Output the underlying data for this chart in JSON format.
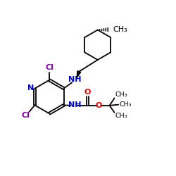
{
  "bg_color": "#ffffff",
  "atom_colors": {
    "C": "#000000",
    "N_blue": "#0000cc",
    "Cl_purple": "#8800aa",
    "O": "#dd0000",
    "H": "#000000"
  },
  "bond_color": "#000000",
  "figsize": [
    2.5,
    2.5
  ],
  "dpi": 100,
  "xlim": [
    0,
    10
  ],
  "ylim": [
    0,
    10
  ],
  "fs": 8.0,
  "fs_small": 6.8,
  "lw": 1.3
}
